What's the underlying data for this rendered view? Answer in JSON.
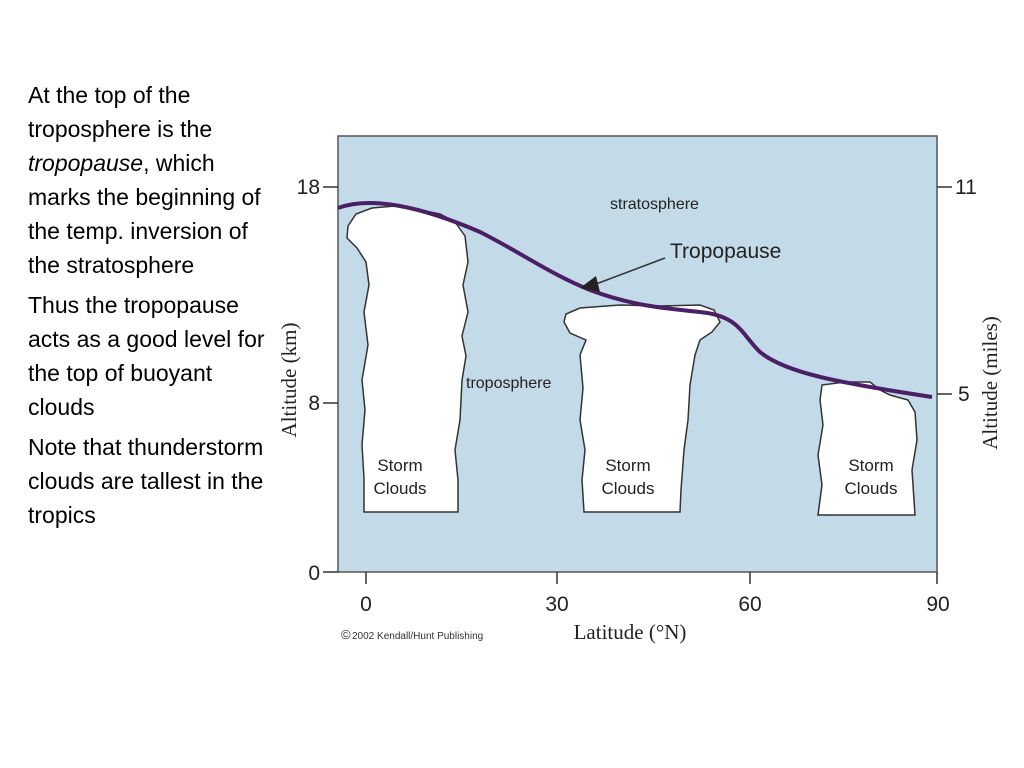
{
  "text": {
    "p1_pre": "At the top of the troposphere is the ",
    "p1_em": "tropopause",
    "p1_post": ", which marks the beginning of the temp. inversion of the stratosphere",
    "p2": "Thus the tropopause acts as a good level for the top of buoyant clouds",
    "p3": "Note that thunderstorm clouds are tallest in the tropics"
  },
  "figure": {
    "x_axis_label": "Latitude (°N)",
    "y_left_label": "Altitude (km)",
    "y_right_label": "Altitude (miles)",
    "x_ticks": [
      "0",
      "30",
      "60",
      "90"
    ],
    "y_left_ticks": [
      "0",
      "8",
      "18"
    ],
    "y_right_ticks": [
      "5",
      "11"
    ],
    "layer_upper": "stratosphere",
    "layer_lower": "troposphere",
    "callout": "Tropopause",
    "clouds": [
      {
        "line1": "Storm",
        "line2": "Clouds"
      },
      {
        "line1": "Storm",
        "line2": "Clouds"
      },
      {
        "line1": "Storm",
        "line2": "Clouds"
      }
    ],
    "credit_symbol": "©",
    "credit": "2002 Kendall/Hunt Publishing",
    "colors": {
      "background": "#c3dae8",
      "tropopause_line": "#4b1f66",
      "cloud_fill": "#ffffff"
    }
  }
}
